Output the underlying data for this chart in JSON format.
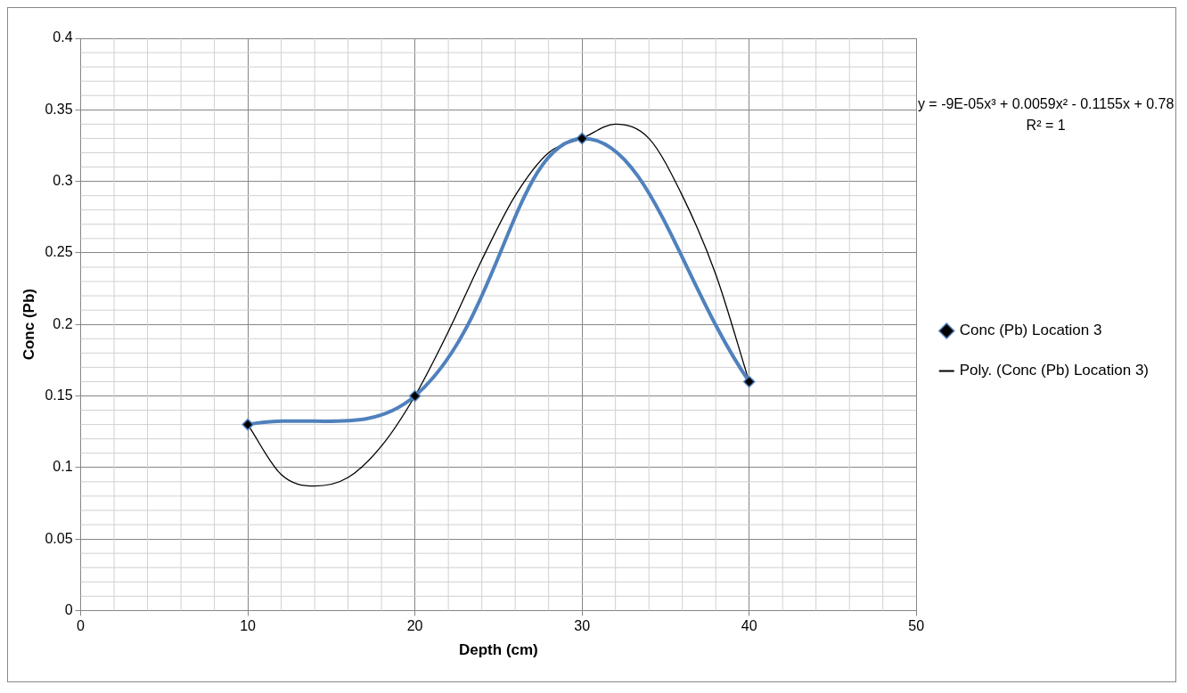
{
  "chart_data": {
    "type": "line",
    "xlabel": "Depth (cm)",
    "ylabel": "Conc (Pb)",
    "xlim": [
      0,
      50
    ],
    "xticks": [
      0,
      10,
      20,
      30,
      40,
      50
    ],
    "ylim": [
      0,
      0.4
    ],
    "yticks": [
      0,
      0.05,
      0.1,
      0.15,
      0.2,
      0.25,
      0.3,
      0.35,
      0.4
    ],
    "grid": true,
    "legend": "right",
    "marker": "diamond",
    "series": [
      {
        "name": "Conc (Pb) Location 3",
        "color": "#4f81bd",
        "x": [
          10,
          20,
          30,
          40
        ],
        "values": [
          0.13,
          0.15,
          0.33,
          0.16
        ]
      },
      {
        "name": "Poly. (Conc (Pb) Location 3)",
        "color": "#000000",
        "marker": "none",
        "x": [
          10,
          12,
          14,
          16,
          18,
          20,
          22,
          24,
          26,
          28,
          30,
          32,
          34,
          36,
          38,
          40
        ],
        "values": [
          0.13,
          0.095,
          0.087,
          0.093,
          0.115,
          0.15,
          0.195,
          0.245,
          0.29,
          0.32,
          0.33,
          0.34,
          0.33,
          0.29,
          0.235,
          0.16
        ]
      }
    ],
    "annotations": [
      "y = -9E-05x³ + 0.0059x² - 0.1155x + 0.78",
      "R² = 1"
    ]
  }
}
